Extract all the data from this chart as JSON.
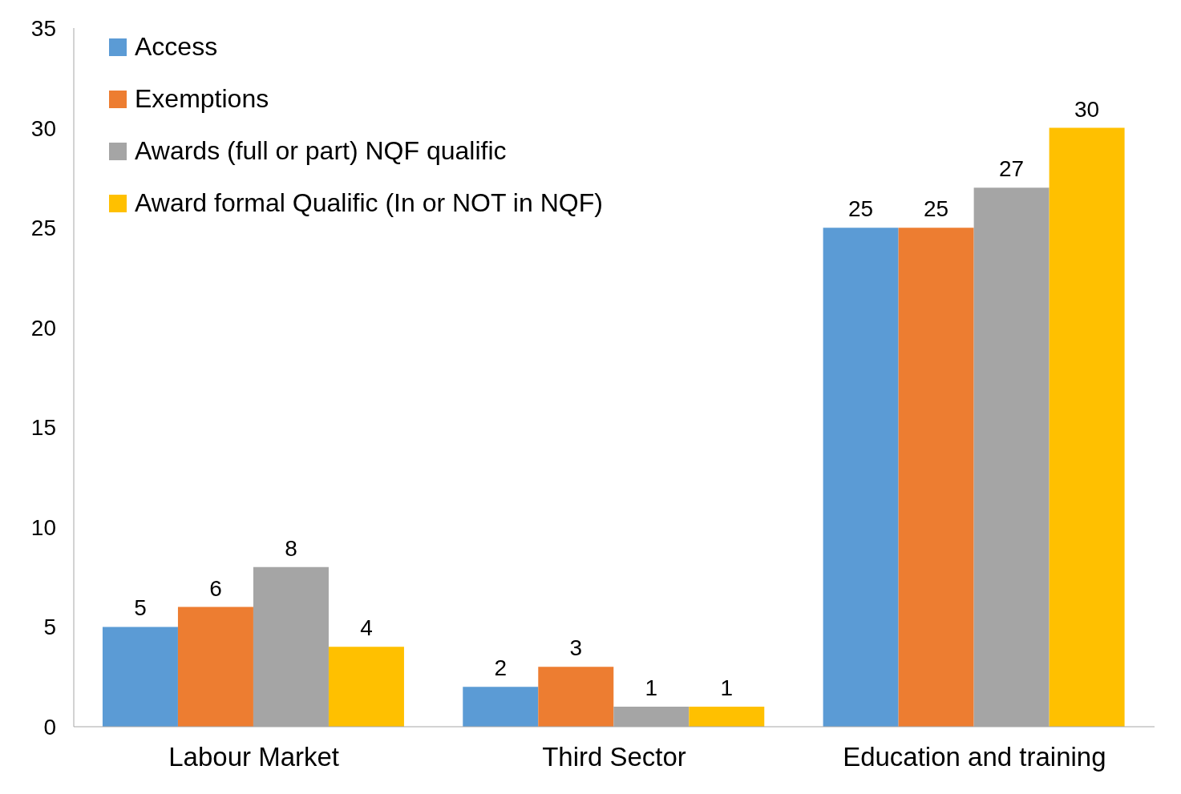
{
  "chart_data": {
    "type": "bar",
    "categories": [
      "Labour Market",
      "Third Sector",
      "Education and training"
    ],
    "series": [
      {
        "name": "Access",
        "color": "#5b9bd5",
        "values": [
          5,
          2,
          25
        ]
      },
      {
        "name": "Exemptions",
        "color": "#ed7d31",
        "values": [
          6,
          3,
          25
        ]
      },
      {
        "name": "Awards (full or part) NQF qualific",
        "color": "#a5a5a5",
        "values": [
          8,
          1,
          27
        ]
      },
      {
        "name": "Award formal Qualific (In or NOT in NQF)",
        "color": "#ffc000",
        "values": [
          4,
          1,
          30
        ]
      }
    ],
    "ylim": [
      0,
      35
    ],
    "yticks": [
      0,
      5,
      10,
      15,
      20,
      25,
      30,
      35
    ],
    "grid": false,
    "legend": "top left",
    "data_labels": true
  }
}
